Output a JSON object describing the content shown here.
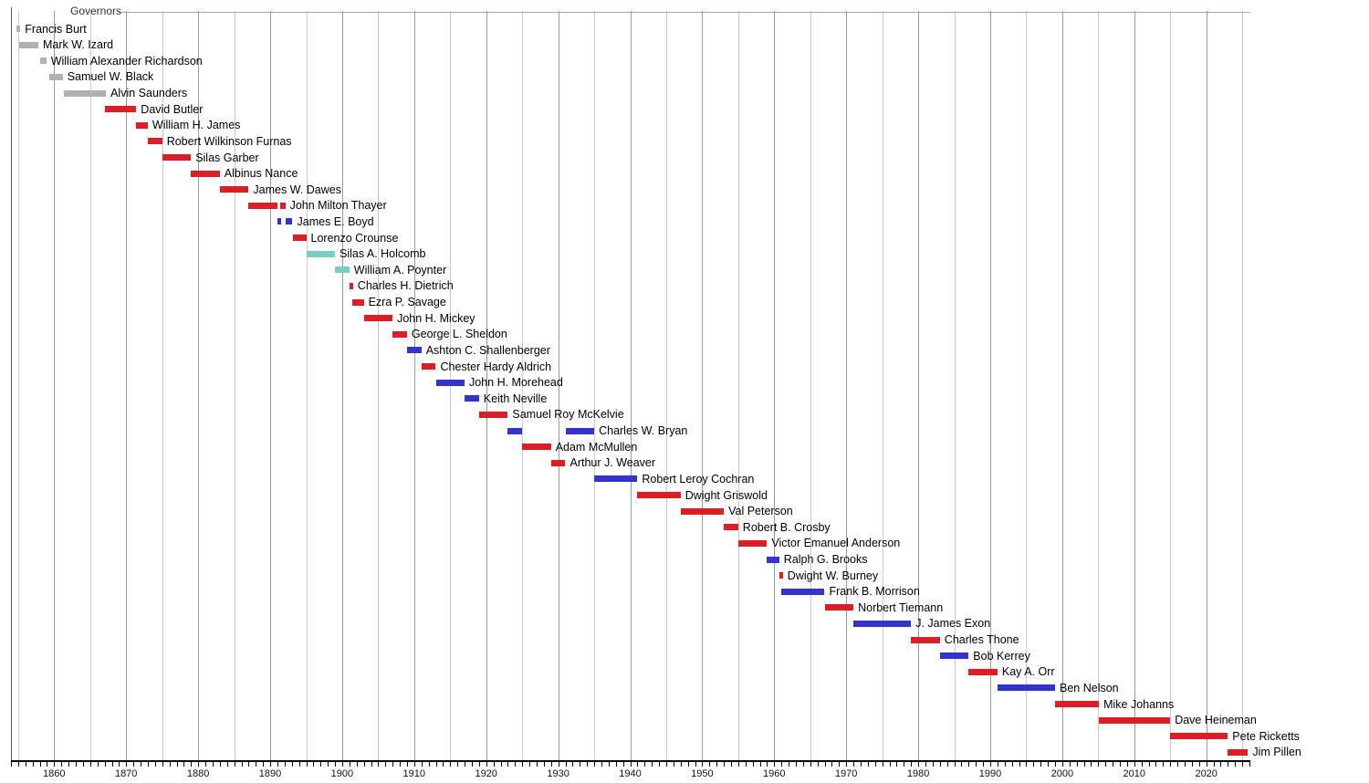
{
  "chart_data": {
    "type": "timeline",
    "title": "Governors",
    "x_axis": {
      "start": 1854,
      "end": 2026,
      "tick_label_years": [
        1860,
        1870,
        1880,
        1890,
        1900,
        1910,
        1920,
        1930,
        1940,
        1950,
        1960,
        1970,
        1980,
        1990,
        2000,
        2010,
        2020
      ],
      "minor_tick_step_years": 1,
      "gridline_step_years": 5,
      "major_gridline_step_years": 10,
      "grid": true
    },
    "party_colors": {
      "territorial": "#b1b1b1",
      "republican": "#dd1e26",
      "democratic": "#3433d0",
      "populist": "#7ccbc4"
    },
    "governors": [
      {
        "name": "Francis Burt",
        "party": "territorial",
        "terms": [
          [
            1854.8,
            1854.9
          ]
        ]
      },
      {
        "name": "Mark W. Izard",
        "party": "territorial",
        "terms": [
          [
            1855.1,
            1857.8
          ]
        ]
      },
      {
        "name": "William Alexander Richardson",
        "party": "territorial",
        "terms": [
          [
            1858.0,
            1858.9
          ]
        ]
      },
      {
        "name": "Samuel W. Black",
        "party": "territorial",
        "terms": [
          [
            1859.3,
            1861.2
          ]
        ]
      },
      {
        "name": "Alvin Saunders",
        "party": "territorial",
        "terms": [
          [
            1861.4,
            1867.2
          ]
        ]
      },
      {
        "name": "David Butler",
        "party": "republican",
        "terms": [
          [
            1867.1,
            1871.4
          ]
        ]
      },
      {
        "name": "William H. James",
        "party": "republican",
        "terms": [
          [
            1871.4,
            1873.0
          ]
        ]
      },
      {
        "name": "Robert Wilkinson Furnas",
        "party": "republican",
        "terms": [
          [
            1873.0,
            1875.0
          ]
        ]
      },
      {
        "name": "Silas Garber",
        "party": "republican",
        "terms": [
          [
            1875.0,
            1879.0
          ]
        ]
      },
      {
        "name": "Albinus Nance",
        "party": "republican",
        "terms": [
          [
            1879.0,
            1883.0
          ]
        ]
      },
      {
        "name": "James W. Dawes",
        "party": "republican",
        "terms": [
          [
            1883.0,
            1887.0
          ]
        ]
      },
      {
        "name": "John Milton Thayer",
        "party": "republican",
        "terms": [
          [
            1887.0,
            1891.0
          ],
          [
            1891.4,
            1892.1
          ]
        ]
      },
      {
        "name": "James E. Boyd",
        "party": "democratic",
        "terms": [
          [
            1891.0,
            1891.4
          ],
          [
            1892.1,
            1893.1
          ]
        ]
      },
      {
        "name": "Lorenzo Crounse",
        "party": "republican",
        "terms": [
          [
            1893.1,
            1895.0
          ]
        ]
      },
      {
        "name": "Silas A. Holcomb",
        "party": "populist",
        "terms": [
          [
            1895.0,
            1899.0
          ]
        ]
      },
      {
        "name": "William A. Poynter",
        "party": "populist",
        "terms": [
          [
            1899.0,
            1901.0
          ]
        ]
      },
      {
        "name": "Charles H. Dietrich",
        "party": "republican",
        "terms": [
          [
            1901.0,
            1901.4
          ]
        ]
      },
      {
        "name": "Ezra P. Savage",
        "party": "republican",
        "terms": [
          [
            1901.4,
            1903.0
          ]
        ]
      },
      {
        "name": "John H. Mickey",
        "party": "republican",
        "terms": [
          [
            1903.0,
            1907.0
          ]
        ]
      },
      {
        "name": "George L. Sheldon",
        "party": "republican",
        "terms": [
          [
            1907.0,
            1909.0
          ]
        ]
      },
      {
        "name": "Ashton C. Shallenberger",
        "party": "democratic",
        "terms": [
          [
            1909.0,
            1911.0
          ]
        ]
      },
      {
        "name": "Chester Hardy Aldrich",
        "party": "republican",
        "terms": [
          [
            1911.0,
            1913.0
          ]
        ]
      },
      {
        "name": "John H. Morehead",
        "party": "democratic",
        "terms": [
          [
            1913.0,
            1917.0
          ]
        ]
      },
      {
        "name": "Keith Neville",
        "party": "democratic",
        "terms": [
          [
            1917.0,
            1919.0
          ]
        ]
      },
      {
        "name": "Samuel Roy McKelvie",
        "party": "republican",
        "terms": [
          [
            1919.0,
            1923.0
          ]
        ]
      },
      {
        "name": "Charles W. Bryan",
        "party": "democratic",
        "terms": [
          [
            1923.0,
            1925.0
          ],
          [
            1931.0,
            1935.0
          ]
        ]
      },
      {
        "name": "Adam McMullen",
        "party": "republican",
        "terms": [
          [
            1925.0,
            1929.0
          ]
        ]
      },
      {
        "name": "Arthur J. Weaver",
        "party": "republican",
        "terms": [
          [
            1929.0,
            1931.0
          ]
        ]
      },
      {
        "name": "Robert Leroy Cochran",
        "party": "democratic",
        "terms": [
          [
            1935.0,
            1941.0
          ]
        ]
      },
      {
        "name": "Dwight Griswold",
        "party": "republican",
        "terms": [
          [
            1941.0,
            1947.0
          ]
        ]
      },
      {
        "name": "Val Peterson",
        "party": "republican",
        "terms": [
          [
            1947.0,
            1953.0
          ]
        ]
      },
      {
        "name": "Robert B. Crosby",
        "party": "republican",
        "terms": [
          [
            1953.0,
            1955.0
          ]
        ]
      },
      {
        "name": "Victor Emanuel Anderson",
        "party": "republican",
        "terms": [
          [
            1955.0,
            1959.0
          ]
        ]
      },
      {
        "name": "Ralph G. Brooks",
        "party": "democratic",
        "terms": [
          [
            1959.0,
            1960.7
          ]
        ]
      },
      {
        "name": "Dwight W. Burney",
        "party": "republican",
        "terms": [
          [
            1960.7,
            1961.0
          ]
        ]
      },
      {
        "name": "Frank B. Morrison",
        "party": "democratic",
        "terms": [
          [
            1961.0,
            1967.0
          ]
        ]
      },
      {
        "name": "Norbert Tiemann",
        "party": "republican",
        "terms": [
          [
            1967.0,
            1971.0
          ]
        ]
      },
      {
        "name": "J. James Exon",
        "party": "democratic",
        "terms": [
          [
            1971.0,
            1979.0
          ]
        ]
      },
      {
        "name": "Charles Thone",
        "party": "republican",
        "terms": [
          [
            1979.0,
            1983.0
          ]
        ]
      },
      {
        "name": "Bob Kerrey",
        "party": "democratic",
        "terms": [
          [
            1983.0,
            1987.0
          ]
        ]
      },
      {
        "name": "Kay A. Orr",
        "party": "republican",
        "terms": [
          [
            1987.0,
            1991.0
          ]
        ]
      },
      {
        "name": "Ben Nelson",
        "party": "democratic",
        "terms": [
          [
            1991.0,
            1999.0
          ]
        ]
      },
      {
        "name": "Mike Johanns",
        "party": "republican",
        "terms": [
          [
            1999.0,
            2005.1
          ]
        ]
      },
      {
        "name": "Dave Heineman",
        "party": "republican",
        "terms": [
          [
            2005.1,
            2015.0
          ]
        ]
      },
      {
        "name": "Pete Ricketts",
        "party": "republican",
        "terms": [
          [
            2015.0,
            2023.0
          ]
        ]
      },
      {
        "name": "Jim Pillen",
        "party": "republican",
        "terms": [
          [
            2023.0,
            2025.8
          ]
        ]
      }
    ]
  }
}
